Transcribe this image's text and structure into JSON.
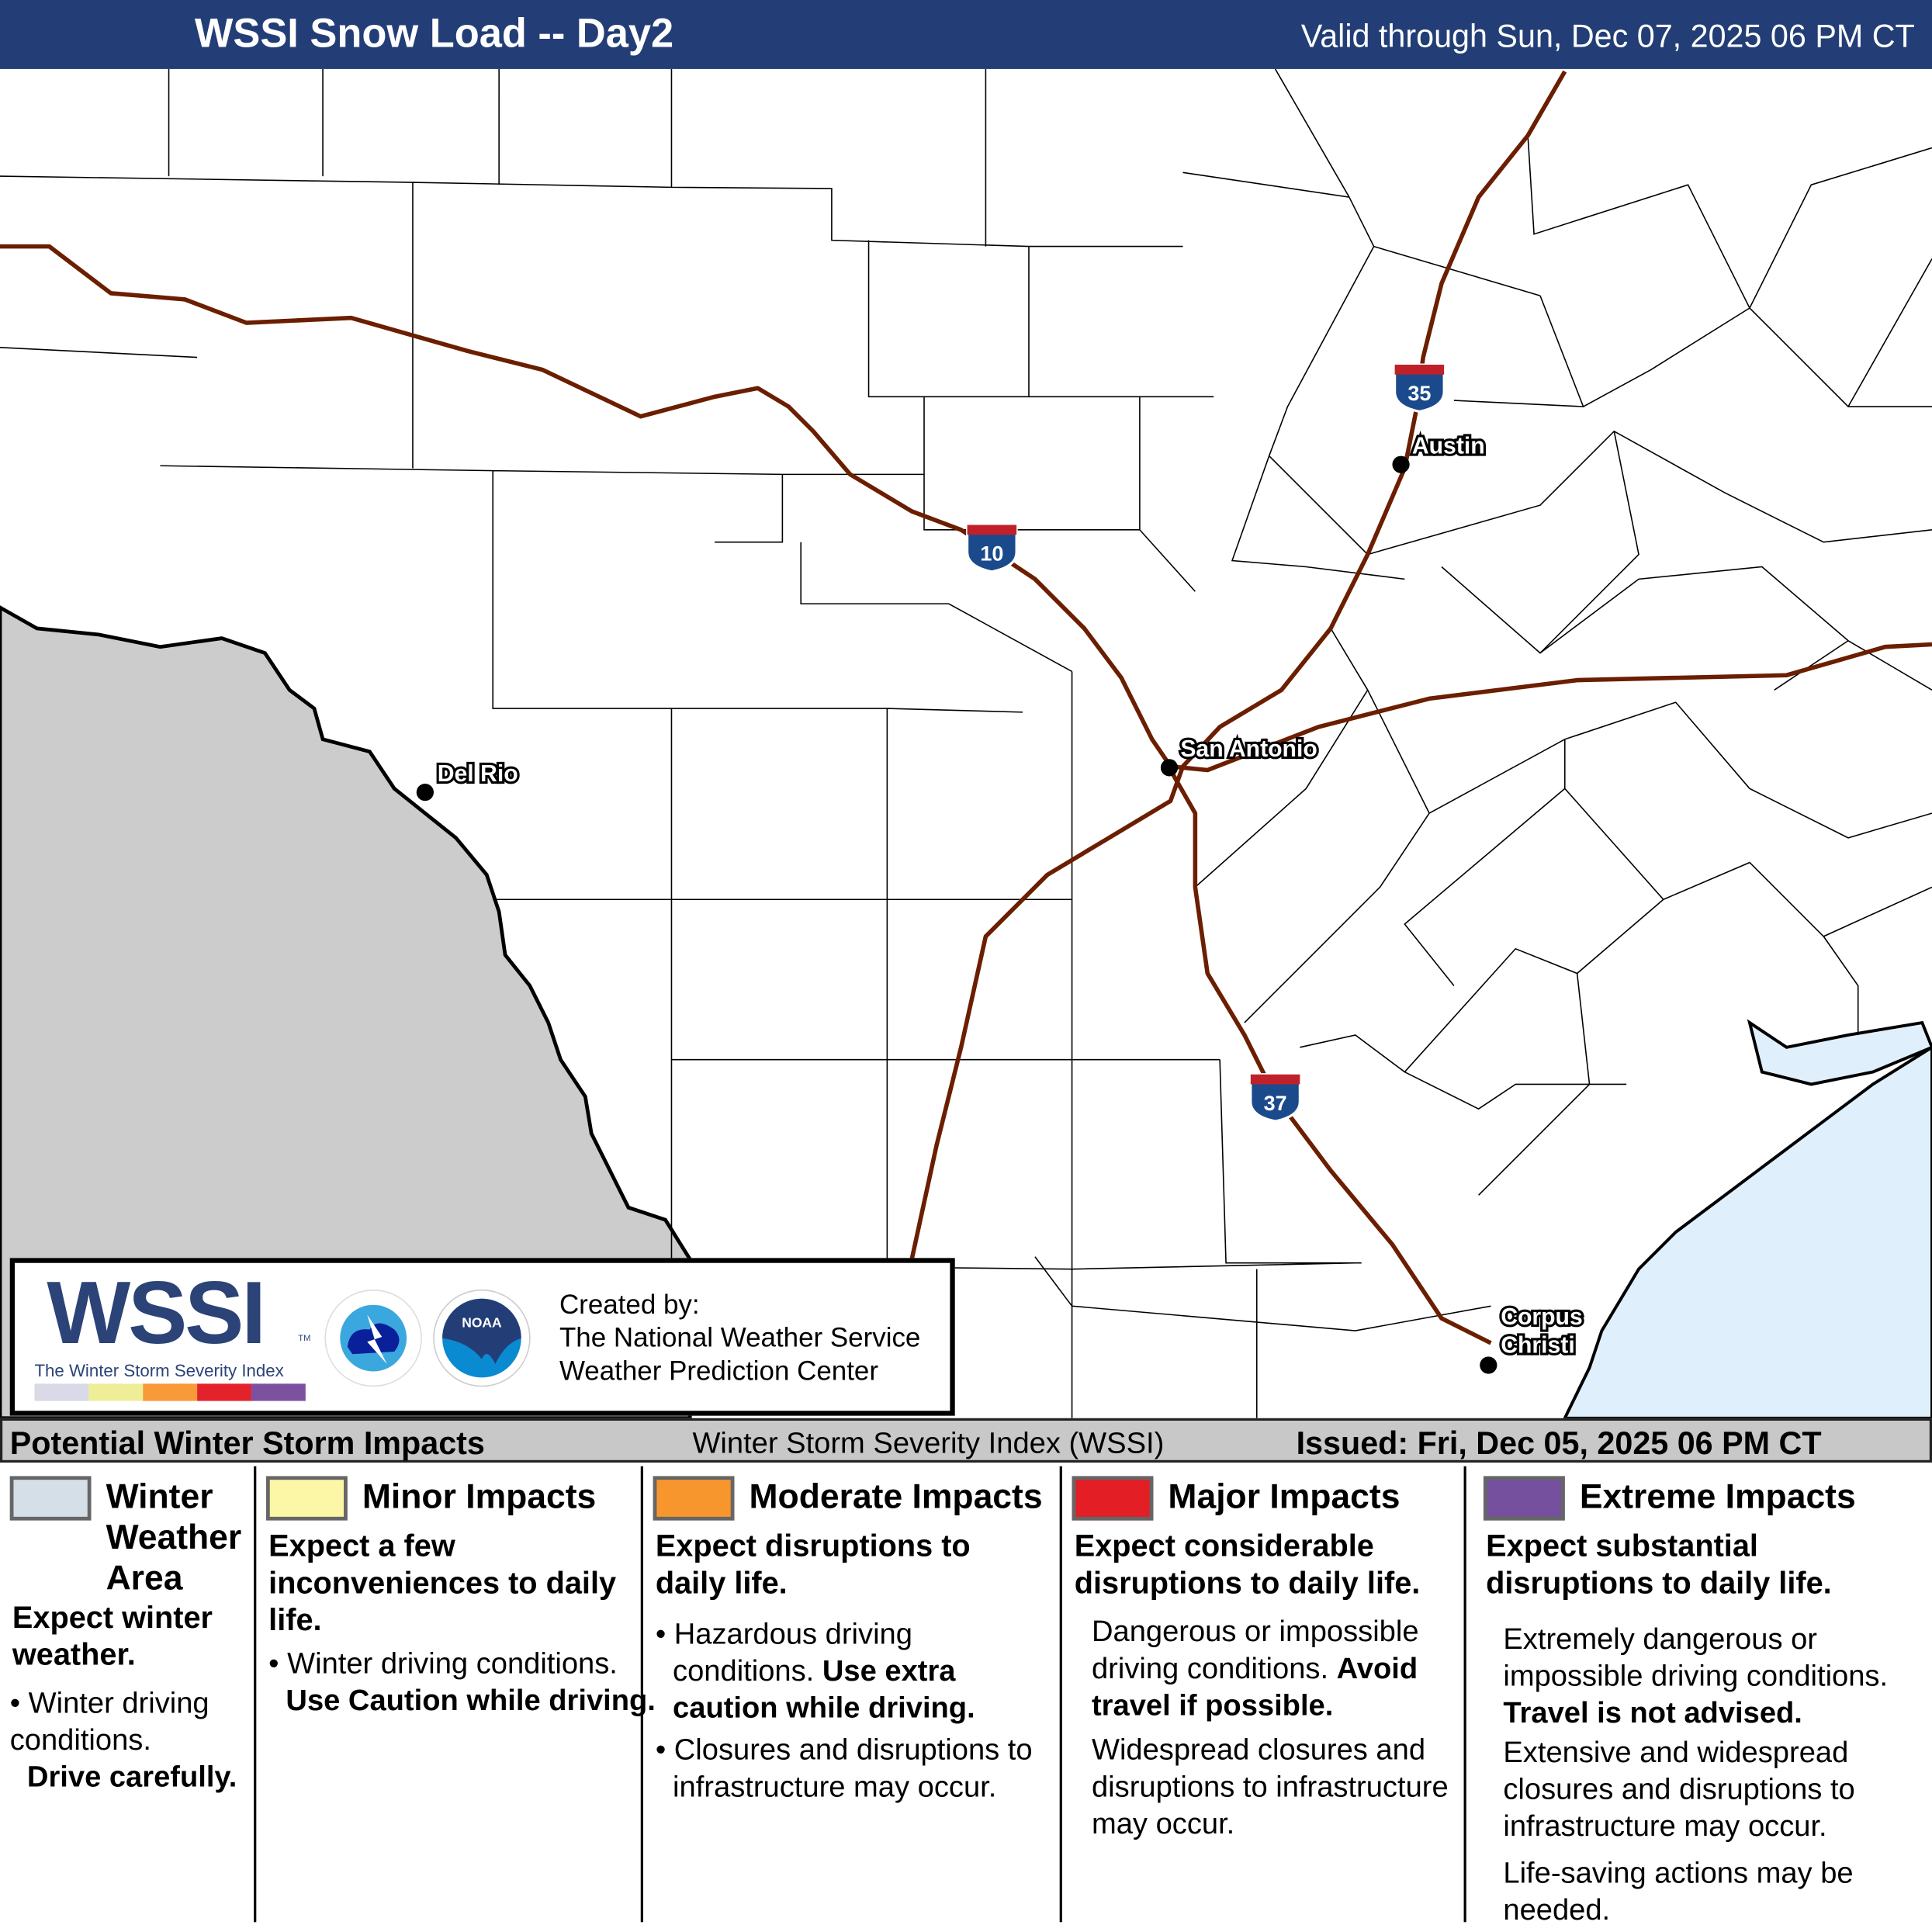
{
  "header": {
    "title": "WSSI Snow Load -- Day2",
    "valid": "Valid through Sun, Dec 07, 2025 06 PM CT"
  },
  "map": {
    "cities": [
      {
        "name": "Del Rio"
      },
      {
        "name": "San Antonio"
      },
      {
        "name": "Austin"
      },
      {
        "name": "Corpus",
        "name2": "Christi"
      }
    ],
    "highways": [
      {
        "label": "10"
      },
      {
        "label": "35"
      },
      {
        "label": "37"
      }
    ],
    "colors": {
      "road": "#6b1e00",
      "mexico": "#cccccc",
      "water": "#dff0fc",
      "shield": "#1a4a8c",
      "shield_top": "#c0202a"
    }
  },
  "legend_box": {
    "logo_text": "WSSI",
    "logo_tm": "TM",
    "logo_subtitle": "The Winter Storm Severity Index",
    "credit": [
      "Created by:",
      "The National Weather Service",
      "Weather Prediction Center"
    ],
    "scale_colors": [
      "#d9d9e8",
      "#eeee99",
      "#f89a38",
      "#e4222c",
      "#7c52a0"
    ],
    "nws_logo": "NATIONAL WEATHER SERVICE",
    "noaa_logo": "NOAA"
  },
  "footer": {
    "left": "Potential Winter Storm Impacts",
    "center": "Winter Storm Severity Index (WSSI)",
    "right": "Issued: Fri, Dec 05, 2025 06 PM CT"
  },
  "categories": [
    {
      "title": "Winter Weather Area",
      "color": "#d4dfe8",
      "summary": "Expect winter weather.",
      "details": [
        "Winter driving conditions.",
        "Drive carefully."
      ]
    },
    {
      "title": "Minor Impacts",
      "color": "#fbf7a6",
      "summary": "Expect a few inconveniences to daily life.",
      "details": [
        "Winter driving conditions.",
        "Use Caution while driving."
      ]
    },
    {
      "title": "Moderate Impacts",
      "color": "#f7962d",
      "summary": "Expect disruptions to daily life.",
      "details": [
        "Hazardous driving conditions.",
        "Use extra caution while driving.",
        "Closures and disruptions to infrastructure may occur."
      ]
    },
    {
      "title": "Major Impacts",
      "color": "#e31e25",
      "summary": "Expect considerable disruptions to daily life.",
      "details": [
        "Dangerous or impossible driving conditions.",
        "Avoid travel if possible.",
        "Widespread closures and disruptions to infrastructure may occur."
      ]
    },
    {
      "title": "Extreme Impacts",
      "color": "#74509e",
      "summary": "Expect substantial disruptions to daily life.",
      "details": [
        "Extremely dangerous or impossible driving conditions.",
        "Travel is not advised.",
        "Extensive and widespread closures and disruptions to infrastructure may occur.",
        "Life-saving actions may be needed."
      ]
    }
  ]
}
